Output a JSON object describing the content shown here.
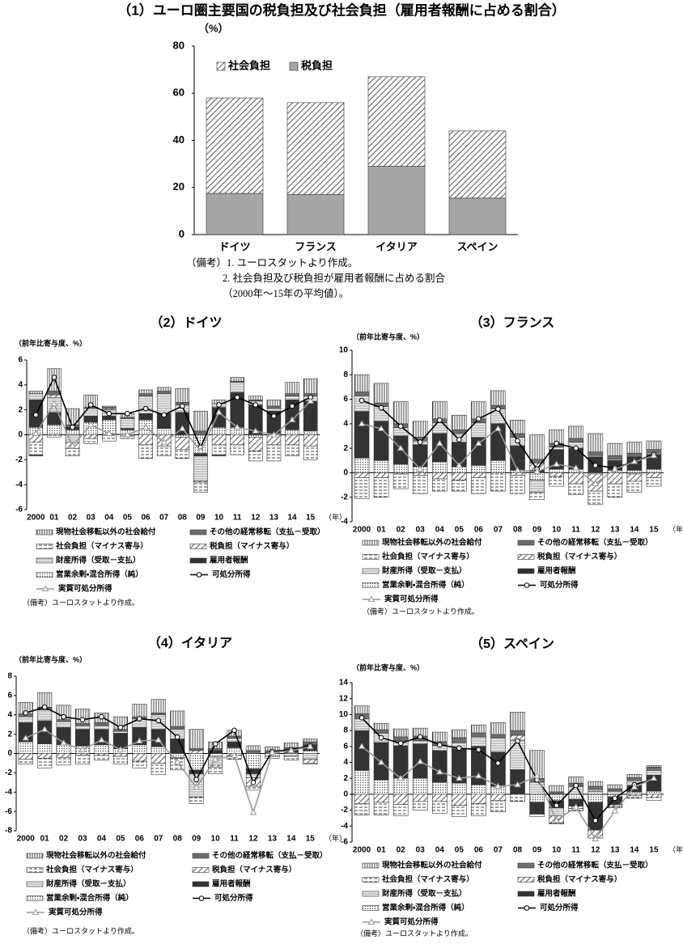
{
  "chart_data": [
    {
      "type": "bar",
      "title": "（1）ユーロ圏主要国の税負担及び社会負担（雇用者報酬に占める割合）",
      "ylabel": "（%）",
      "categories": [
        "ドイツ",
        "フランス",
        "イタリア",
        "スペイン"
      ],
      "series": [
        {
          "name": "社会負担",
          "color": "#ffffff",
          "pattern": "diag",
          "values": [
            40.5,
            39,
            38,
            28.5
          ]
        },
        {
          "name": "税負担",
          "color": "#a6a6a6",
          "values": [
            17.5,
            17,
            29,
            15.5
          ]
        }
      ],
      "ylim": [
        0,
        80
      ],
      "yticks": [
        0,
        20,
        40,
        60,
        80
      ],
      "legend": "top-left",
      "notes": [
        "（備考）1. ユーロスタットより作成。",
        "2. 社会負担及び税負担が雇用者報酬に占める割合",
        "（2000年～15年の平均値）。"
      ]
    },
    {
      "type": "bar",
      "title": "（2）ドイツ",
      "ylabel": "（前年比寄与度、%）",
      "xlabel": "（年）",
      "categories": [
        "2000",
        "01",
        "02",
        "03",
        "04",
        "05",
        "06",
        "07",
        "08",
        "09",
        "10",
        "11",
        "12",
        "13",
        "14",
        "15"
      ],
      "series": [
        {
          "name": "現物社会移転以外の社会給付",
          "color": "#ffffff",
          "pattern": "vstripe",
          "values": [
            0.2,
            1.8,
            1.3,
            1.0,
            0.1,
            0.3,
            0.3,
            0.3,
            1.1,
            1.6,
            0.3,
            0.3,
            0.3,
            0.5,
            0.9,
            1.2
          ]
        },
        {
          "name": "その他の経常移転（支払－受取）",
          "color": "#6e6e6e",
          "values": [
            -0.1,
            0.3,
            0.2,
            0.1,
            0.1,
            0.1,
            0.2,
            0.2,
            0.2,
            0.3,
            -0.1,
            0.1,
            0.1,
            0.2,
            0.2,
            0.2
          ]
        },
        {
          "name": "社会負担（マイナス寄与）",
          "color": "#ffffff",
          "pattern": "hdash",
          "values": [
            -1.0,
            -0.2,
            -0.6,
            -0.4,
            -0.5,
            -0.2,
            -1.1,
            -0.8,
            -0.7,
            -0.8,
            -0.8,
            -0.8,
            -0.8,
            -1.3,
            -0.9,
            -1.1
          ]
        },
        {
          "name": "税負担（マイナス寄与）",
          "color": "#ffffff",
          "pattern": "diag",
          "values": [
            -0.6,
            0.2,
            -0.5,
            -0.3,
            0.1,
            -0.1,
            -0.8,
            -0.9,
            -1.0,
            -0.1,
            -0.8,
            -0.8,
            -1.1,
            -0.8,
            -0.8,
            -0.9
          ]
        },
        {
          "name": "財産所得（受取－支払）",
          "color": "#ffffff",
          "pattern": "hline",
          "values": [
            0.5,
            1.2,
            -0.6,
            0.6,
            0.5,
            0.8,
            1.4,
            1.6,
            0.6,
            -2.0,
            0.3,
            0.8,
            0.3,
            0.2,
            0.3,
            0.4
          ]
        },
        {
          "name": "雇用者報酬",
          "color": "#333333",
          "values": [
            2.2,
            1.0,
            0.2,
            0.5,
            0.3,
            0.1,
            0.5,
            1.2,
            1.8,
            -0.2,
            1.6,
            2.8,
            2.4,
            1.8,
            2.4,
            2.4
          ]
        },
        {
          "name": "営業余剰・混合所得（純）",
          "color": "#ffffff",
          "pattern": "dots",
          "values": [
            0.6,
            0.8,
            0.4,
            1.0,
            1.2,
            0.4,
            1.2,
            0.5,
            -0.2,
            -1.5,
            0.6,
            0.6,
            -0.2,
            0.1,
            0.4,
            0.3
          ]
        },
        {
          "name": "可処分所得",
          "type": "line",
          "color": "#000000",
          "marker": "circle",
          "values": [
            1.6,
            4.6,
            0.6,
            2.4,
            1.7,
            1.7,
            2.1,
            1.6,
            2.3,
            -1.0,
            2.4,
            3.0,
            2.4,
            1.5,
            2.3,
            3.0
          ]
        },
        {
          "name": "実質可処分所得",
          "type": "line",
          "color": "#999999",
          "marker": "triangle",
          "values": [
            0.1,
            2.5,
            -0.9,
            0.8,
            0.1,
            0.0,
            0.6,
            -0.6,
            0.5,
            -1.3,
            1.8,
            0.6,
            0.3,
            0.0,
            1.2,
            2.7
          ]
        }
      ],
      "ylim": [
        -6,
        6
      ],
      "yticks": [
        -6,
        -4,
        -2,
        0,
        2,
        4,
        6
      ],
      "legend": "bottom",
      "notes": [
        "（備考）ユーロスタットより作成。"
      ]
    },
    {
      "type": "bar",
      "title": "（3）フランス",
      "ylabel": "（前年比寄与度、%）",
      "xlabel": "（年）",
      "categories": [
        "2000",
        "01",
        "02",
        "03",
        "04",
        "05",
        "06",
        "07",
        "08",
        "09",
        "10",
        "11",
        "12",
        "13",
        "14",
        "15"
      ],
      "series": [
        {
          "name": "現物社会移転以外の社会給付",
          "color": "#ffffff",
          "pattern": "vstripe",
          "values": [
            1.4,
            1.6,
            1.8,
            1.3,
            1.4,
            1.2,
            1.4,
            1.2,
            1.1,
            2.0,
            1.1,
            1.0,
            1.5,
            1.0,
            0.9,
            0.7
          ]
        },
        {
          "name": "その他の経常移転（支払－受取）",
          "color": "#6e6e6e",
          "values": [
            0.3,
            0.3,
            0.3,
            0.3,
            0.3,
            0.3,
            0.3,
            0.3,
            0.3,
            0.3,
            0.3,
            0.3,
            0.3,
            0.3,
            0.3,
            0.3
          ]
        },
        {
          "name": "社会負担（マイナス寄与）",
          "color": "#ffffff",
          "pattern": "hdash",
          "values": [
            -1.7,
            -1.6,
            -1.2,
            -1.5,
            -1.0,
            -0.9,
            -1.3,
            -1.5,
            -1.5,
            -0.6,
            -0.8,
            -0.9,
            -1.1,
            -1.1,
            -0.9,
            -0.7
          ]
        },
        {
          "name": "税負担（マイナス寄与）",
          "color": "#ffffff",
          "pattern": "diag",
          "values": [
            -0.4,
            -0.4,
            -0.1,
            -0.2,
            -0.5,
            -0.6,
            -0.4,
            0.0,
            -0.2,
            0.6,
            -0.3,
            -0.9,
            -1.4,
            -0.9,
            -0.6,
            -0.4
          ]
        },
        {
          "name": "財産所得（受取－支払）",
          "color": "#ffffff",
          "pattern": "hline",
          "values": [
            1.3,
            1.2,
            0.7,
            0.3,
            0.9,
            0.7,
            1.2,
            1.2,
            0.7,
            -1.0,
            0.2,
            0.5,
            0.1,
            0.1,
            -0.1,
            0.1
          ]
        },
        {
          "name": "雇用者報酬",
          "color": "#333333",
          "values": [
            3.8,
            3.2,
            2.3,
            1.8,
            2.3,
            2.0,
            2.3,
            3.0,
            2.0,
            0.2,
            1.6,
            1.7,
            1.3,
            0.8,
            1.1,
            1.2
          ]
        },
        {
          "name": "営業余剰・混合所得（純）",
          "color": "#ffffff",
          "pattern": "dots",
          "values": [
            1.2,
            1.0,
            0.7,
            0.5,
            0.9,
            0.5,
            0.6,
            1.0,
            0.2,
            -0.6,
            0.3,
            0.3,
            -0.1,
            0.2,
            0.2,
            0.3
          ]
        },
        {
          "name": "可処分所得",
          "type": "line",
          "color": "#000000",
          "marker": "circle",
          "values": [
            5.9,
            5.3,
            3.8,
            2.5,
            4.3,
            2.7,
            4.4,
            5.2,
            2.6,
            0.3,
            2.4,
            2.0,
            0.6,
            0.4,
            0.9,
            1.5
          ]
        },
        {
          "name": "実質可処分所得",
          "type": "line",
          "color": "#999999",
          "marker": "triangle",
          "values": [
            4.0,
            3.6,
            2.0,
            0.3,
            2.4,
            0.6,
            2.4,
            3.6,
            0.2,
            0.1,
            0.7,
            0.4,
            -0.9,
            0.3,
            0.9,
            1.4
          ]
        }
      ],
      "ylim": [
        -4,
        10
      ],
      "yticks": [
        -4,
        -2,
        0,
        2,
        4,
        6,
        8,
        10
      ],
      "legend": "bottom",
      "notes": [
        "（備考）ユーロスタットより作成。"
      ]
    },
    {
      "type": "bar",
      "title": "（4）イタリア",
      "ylabel": "（前年比寄与度、%）",
      "xlabel": "（年）",
      "categories": [
        "2000",
        "01",
        "02",
        "03",
        "04",
        "05",
        "06",
        "07",
        "08",
        "09",
        "10",
        "11",
        "12",
        "13",
        "14",
        "15"
      ],
      "series": [
        {
          "name": "現物社会移転以外の社会給付",
          "color": "#ffffff",
          "pattern": "vstripe",
          "values": [
            1.2,
            1.5,
            1.5,
            1.5,
            1.0,
            1.3,
            1.3,
            1.4,
            1.6,
            2.0,
            0.7,
            0.6,
            0.5,
            0.4,
            0.5,
            0.3
          ]
        },
        {
          "name": "その他の経常移転（支払－受取）",
          "color": "#6e6e6e",
          "values": [
            0.3,
            0.3,
            0.2,
            0.2,
            0.3,
            0.2,
            0.2,
            0.2,
            0.3,
            0.2,
            0.2,
            0.2,
            0.3,
            0.2,
            0.2,
            0.3
          ]
        },
        {
          "name": "社会負担（マイナス寄与）",
          "color": "#ffffff",
          "pattern": "hdash",
          "values": [
            -0.5,
            -1.0,
            -0.8,
            -0.9,
            -0.5,
            -0.8,
            -0.7,
            -1.2,
            -1.2,
            -0.7,
            -0.7,
            -0.4,
            -0.4,
            -0.2,
            -0.4,
            -0.1
          ]
        },
        {
          "name": "税負担（マイナス寄与）",
          "color": "#ffffff",
          "pattern": "diag",
          "values": [
            -0.6,
            -0.5,
            -0.4,
            -0.2,
            -0.2,
            -0.3,
            -0.8,
            -1.0,
            -0.1,
            0.3,
            -0.2,
            -0.2,
            -0.9,
            0.1,
            0.1,
            -0.4
          ]
        },
        {
          "name": "財産所得（受取－支払）",
          "color": "#ffffff",
          "pattern": "hline",
          "values": [
            0.6,
            1.1,
            0.6,
            0.4,
            0.4,
            0.2,
            0.9,
            1.5,
            1.0,
            -2.4,
            -0.9,
            0.4,
            -0.4,
            0.0,
            -0.3,
            -0.6
          ]
        },
        {
          "name": "雇用者報酬",
          "color": "#333333",
          "values": [
            2.0,
            2.4,
            1.8,
            1.7,
            1.6,
            1.6,
            1.8,
            1.8,
            1.5,
            -0.4,
            0.3,
            0.6,
            -0.5,
            0.0,
            0.2,
            0.6
          ]
        },
        {
          "name": "営業余剰・混合所得（純）",
          "color": "#ffffff",
          "pattern": "dots",
          "values": [
            1.2,
            1.0,
            0.9,
            0.8,
            0.9,
            0.5,
            0.9,
            0.7,
            -0.4,
            -1.7,
            -0.3,
            0.6,
            -1.6,
            -0.3,
            0.1,
            0.3
          ]
        },
        {
          "name": "可処分所得",
          "type": "line",
          "color": "#000000",
          "marker": "circle",
          "values": [
            4.2,
            4.8,
            3.8,
            3.5,
            3.8,
            2.7,
            3.6,
            3.4,
            1.7,
            -2.7,
            1.0,
            2.4,
            -3.0,
            0.2,
            0.4,
            0.8
          ]
        },
        {
          "name": "実質可処分所得",
          "type": "line",
          "color": "#999999",
          "marker": "triangle",
          "values": [
            1.6,
            2.5,
            1.1,
            0.4,
            1.4,
            0.4,
            1.3,
            1.4,
            -0.9,
            -3.5,
            -0.6,
            -0.2,
            -6.1,
            0.1,
            0.3,
            0.7
          ]
        }
      ],
      "ylim": [
        -8,
        8
      ],
      "yticks": [
        -8,
        -6,
        -4,
        -2,
        0,
        2,
        4,
        6,
        8
      ],
      "legend": "bottom",
      "notes": [
        "（備考）ユーロスタットより作成。"
      ]
    },
    {
      "type": "bar",
      "title": "（5）スペイン",
      "ylabel": "（前年比寄与度、%）",
      "xlabel": "（年）",
      "categories": [
        "2000",
        "01",
        "02",
        "03",
        "04",
        "05",
        "06",
        "07",
        "08",
        "09",
        "10",
        "11",
        "12",
        "13",
        "14",
        "15"
      ],
      "series": [
        {
          "name": "現物社会移転以外の社会給付",
          "color": "#ffffff",
          "pattern": "vstripe",
          "values": [
            1.0,
            0.8,
            1.0,
            1.0,
            1.2,
            1.0,
            1.0,
            1.5,
            2.3,
            3.5,
            0.8,
            0.8,
            0.6,
            0.5,
            0.4,
            0.2
          ]
        },
        {
          "name": "その他の経常移転（支払－受取）",
          "color": "#6e6e6e",
          "values": [
            0.6,
            0.4,
            0.5,
            0.6,
            0.5,
            0.6,
            0.5,
            0.4,
            0.6,
            0.5,
            0.3,
            0.4,
            0.4,
            0.3,
            0.4,
            0.4
          ]
        },
        {
          "name": "社会負担（マイナス寄与）",
          "color": "#ffffff",
          "pattern": "hdash",
          "values": [
            -1.4,
            -1.6,
            -1.4,
            -1.1,
            -1.5,
            -1.4,
            -1.5,
            -1.4,
            -0.9,
            -0.3,
            -0.1,
            -0.3,
            0.2,
            -0.2,
            -0.3,
            -0.4
          ]
        },
        {
          "name": "税負担（マイナス寄与）",
          "color": "#ffffff",
          "pattern": "diag",
          "values": [
            -1.2,
            -1.0,
            -1.3,
            -0.9,
            -0.9,
            -1.4,
            -1.2,
            -0.8,
            0.6,
            0.0,
            -0.9,
            -0.3,
            -1.0,
            -0.2,
            -0.2,
            -0.4
          ]
        },
        {
          "name": "財産所得（受取－支払）",
          "color": "#ffffff",
          "pattern": "hline",
          "values": [
            1.5,
            1.2,
            0.6,
            0.4,
            0.6,
            0.8,
            1.2,
            1.8,
            3.7,
            1.5,
            -1.0,
            1.0,
            0.4,
            0.4,
            0.6,
            0.6
          ]
        },
        {
          "name": "雇用者報酬",
          "color": "#333333",
          "values": [
            5.0,
            4.7,
            4.1,
            4.3,
            4.0,
            4.3,
            4.8,
            4.3,
            3.1,
            -1.5,
            -0.9,
            -0.9,
            -3.5,
            -1.0,
            0.8,
            2.0
          ]
        },
        {
          "name": "営業余剰・混合所得（純）",
          "color": "#ffffff",
          "pattern": "dots",
          "values": [
            3.0,
            1.8,
            2.0,
            2.0,
            1.5,
            1.4,
            1.2,
            1.0,
            0.0,
            -1.0,
            -0.8,
            -0.6,
            -1.0,
            -0.3,
            0.3,
            0.4
          ]
        },
        {
          "name": "可処分所得",
          "type": "line",
          "color": "#000000",
          "marker": "circle",
          "values": [
            9.6,
            7.1,
            6.4,
            7.2,
            6.2,
            5.8,
            5.6,
            3.9,
            6.7,
            1.8,
            -1.4,
            1.1,
            -3.3,
            -0.5,
            1.2,
            1.9
          ]
        },
        {
          "name": "実質可処分所得",
          "type": "line",
          "color": "#999999",
          "marker": "triangle",
          "values": [
            6.0,
            4.0,
            2.0,
            4.1,
            2.8,
            2.0,
            2.3,
            1.0,
            1.2,
            2.3,
            -3.3,
            -1.6,
            -5.6,
            -2.1,
            0.9,
            2.0
          ]
        }
      ],
      "ylim": [
        -6,
        14
      ],
      "yticks": [
        -6,
        -4,
        -2,
        0,
        2,
        4,
        6,
        8,
        10,
        12,
        14
      ],
      "legend": "bottom",
      "notes": [
        "（備考）ユーロスタットより作成。"
      ]
    }
  ]
}
